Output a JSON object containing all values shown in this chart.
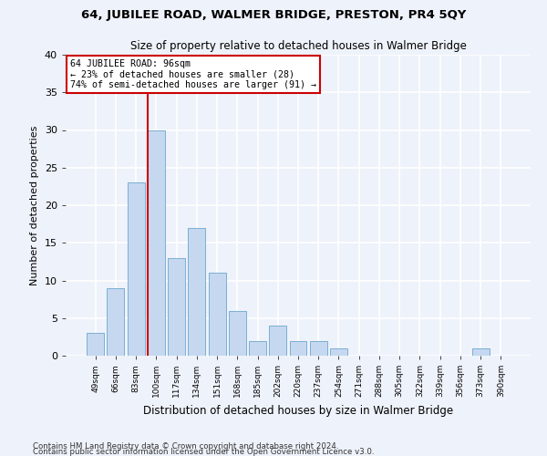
{
  "title": "64, JUBILEE ROAD, WALMER BRIDGE, PRESTON, PR4 5QY",
  "subtitle": "Size of property relative to detached houses in Walmer Bridge",
  "xlabel": "Distribution of detached houses by size in Walmer Bridge",
  "ylabel": "Number of detached properties",
  "bar_color": "#c5d8f0",
  "bar_edge_color": "#7bafd4",
  "categories": [
    "49sqm",
    "66sqm",
    "83sqm",
    "100sqm",
    "117sqm",
    "134sqm",
    "151sqm",
    "168sqm",
    "185sqm",
    "202sqm",
    "220sqm",
    "237sqm",
    "254sqm",
    "271sqm",
    "288sqm",
    "305sqm",
    "322sqm",
    "339sqm",
    "356sqm",
    "373sqm",
    "390sqm"
  ],
  "values": [
    3,
    9,
    23,
    30,
    13,
    17,
    11,
    6,
    2,
    4,
    2,
    2,
    1,
    0,
    0,
    0,
    0,
    0,
    0,
    1,
    0
  ],
  "vline_x_index": 3,
  "vline_color": "#cc0000",
  "ylim": [
    0,
    40
  ],
  "yticks": [
    0,
    5,
    10,
    15,
    20,
    25,
    30,
    35,
    40
  ],
  "annotation_title": "64 JUBILEE ROAD: 96sqm",
  "annotation_line1": "← 23% of detached houses are smaller (28)",
  "annotation_line2": "74% of semi-detached houses are larger (91) →",
  "annotation_box_color": "#ffffff",
  "annotation_border_color": "#cc0000",
  "footer_line1": "Contains HM Land Registry data © Crown copyright and database right 2024.",
  "footer_line2": "Contains public sector information licensed under the Open Government Licence v3.0.",
  "background_color": "#eef2fa",
  "grid_color": "#ffffff"
}
